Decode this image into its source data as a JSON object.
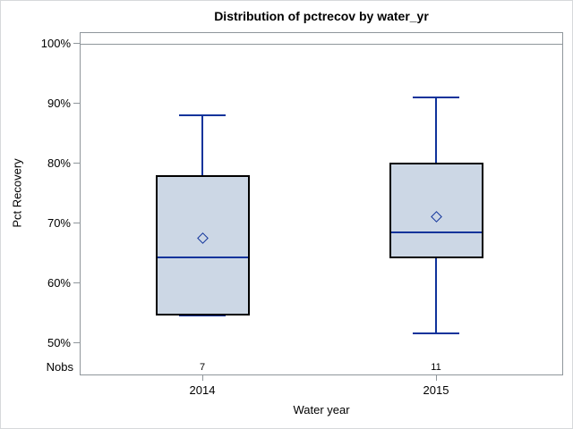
{
  "title": "Distribution of pctrecov by water_yr",
  "colors": {
    "box_fill": "#ccd7e5",
    "box_border": "#000000",
    "line": "#10339b",
    "frame": "#8f969b",
    "outer_border": "#d6d9db",
    "text": "#000000"
  },
  "chart_data": {
    "type": "boxplot",
    "title": "Distribution of pctrecov by water_yr",
    "xlabel": "Water year",
    "ylabel": "Pct Recovery",
    "nobs_label": "Nobs",
    "ylim": [
      44,
      102
    ],
    "grid": false,
    "legend": "none",
    "reference_line_value": 100,
    "yticks": [
      {
        "label": "100%",
        "value": 100
      },
      {
        "label": "90%",
        "value": 90
      },
      {
        "label": "80%",
        "value": 80
      },
      {
        "label": "70%",
        "value": 70
      },
      {
        "label": "60%",
        "value": 60
      },
      {
        "label": "50%",
        "value": 50
      }
    ],
    "categories": [
      "2014",
      "2015"
    ],
    "series": [
      {
        "category": "2014",
        "nobs": "7",
        "min": 54.5,
        "q1": 54.5,
        "median": 64.2,
        "mean": 67.5,
        "q3": 78.0,
        "max": 88.0
      },
      {
        "category": "2015",
        "nobs": "11",
        "min": 51.6,
        "q1": 64.1,
        "median": 68.5,
        "mean": 71.0,
        "q3": 80.1,
        "max": 91.0
      }
    ]
  }
}
